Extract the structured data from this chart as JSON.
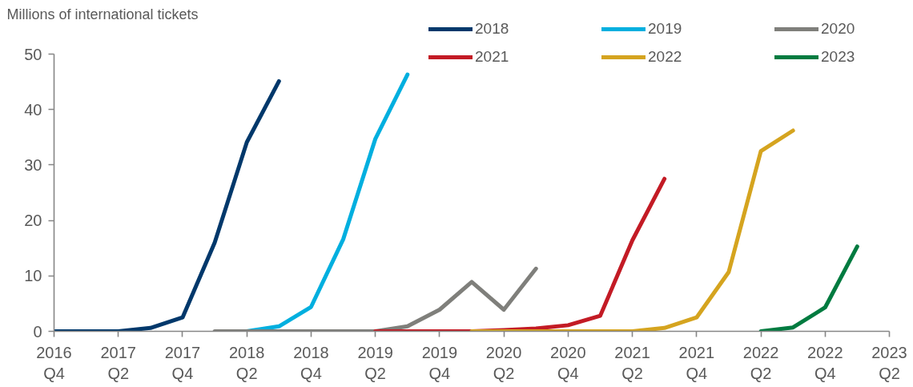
{
  "chart_data": {
    "type": "line",
    "ylabel": "Millions of international tickets",
    "categories": [
      "2016\nQ4",
      null,
      "2017\nQ2",
      null,
      "2017\nQ4",
      null,
      "2018\nQ2",
      null,
      "2018\nQ4",
      null,
      "2019\nQ2",
      null,
      "2019\nQ4",
      null,
      "2020\nQ2",
      null,
      "2020\nQ4",
      null,
      "2021\nQ2",
      null,
      "2021\nQ4",
      null,
      "2022\nQ2",
      null,
      "2022\nQ4",
      null,
      "2023\nQ2"
    ],
    "ylim": [
      0,
      50
    ],
    "yticks": [
      0,
      10,
      20,
      30,
      40,
      50
    ],
    "grid": false,
    "legend": "top right",
    "line_style": "solid",
    "series": [
      {
        "name": "2018",
        "color": "#00386b",
        "values": [
          0,
          0,
          0,
          0.6,
          2.5,
          16,
          34.1,
          45.1,
          null,
          null,
          null,
          null,
          null,
          null,
          null,
          null,
          null,
          null,
          null,
          null,
          null,
          null,
          null,
          null,
          null,
          null,
          null
        ]
      },
      {
        "name": "2019",
        "color": "#00afdf",
        "values": [
          null,
          null,
          null,
          null,
          null,
          null,
          0,
          0.9,
          4.4,
          16.6,
          34.7,
          46.3,
          null,
          null,
          null,
          null,
          null,
          null,
          null,
          null,
          null,
          null,
          null,
          null,
          null,
          null,
          null
        ]
      },
      {
        "name": "2020",
        "color": "#7f7f7b",
        "values": [
          null,
          null,
          null,
          null,
          null,
          0,
          0,
          0,
          0,
          0,
          0,
          0.9,
          3.9,
          8.9,
          3.9,
          11.3,
          null,
          null,
          null,
          null,
          null,
          null,
          null,
          null,
          null,
          null,
          null
        ]
      },
      {
        "name": "2021",
        "color": "#c31b25",
        "values": [
          null,
          null,
          null,
          null,
          null,
          null,
          null,
          null,
          null,
          null,
          0,
          0,
          0,
          0,
          0.2,
          0.5,
          1.1,
          2.8,
          16.4,
          27.5,
          null,
          null,
          null,
          null,
          null,
          null,
          null
        ]
      },
      {
        "name": "2022",
        "color": "#d5a41f",
        "values": [
          null,
          null,
          null,
          null,
          null,
          null,
          null,
          null,
          null,
          null,
          null,
          null,
          null,
          0,
          0,
          0,
          0,
          0,
          0,
          0.6,
          2.5,
          10.7,
          32.5,
          36.2,
          null,
          null,
          null
        ]
      },
      {
        "name": "2023",
        "color": "#007b40",
        "values": [
          null,
          null,
          null,
          null,
          null,
          null,
          null,
          null,
          null,
          null,
          null,
          null,
          null,
          null,
          null,
          null,
          null,
          null,
          null,
          null,
          null,
          null,
          0,
          0.7,
          4.3,
          15.3,
          null
        ]
      }
    ]
  }
}
